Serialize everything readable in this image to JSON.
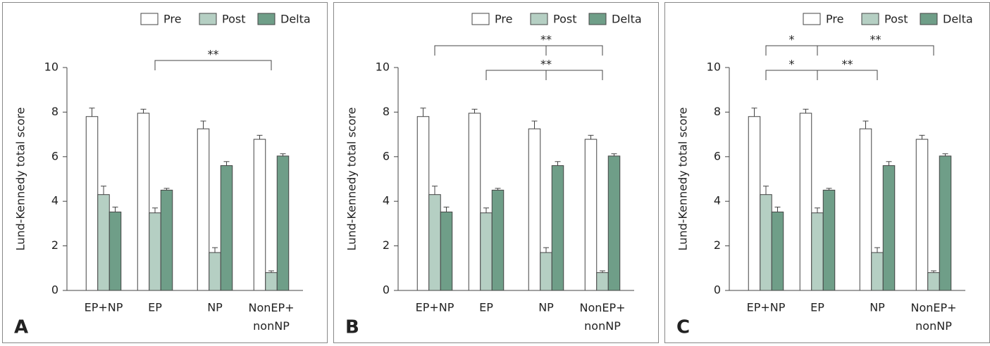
{
  "chart_data": [
    {
      "type": "bar",
      "panel": "A",
      "ylabel": "Lund-Kennedy total score",
      "categories": [
        "EP+NP",
        "EP",
        "NP",
        "NonEP+ nonNP"
      ],
      "series": [
        {
          "name": "Pre",
          "color": "#ffffff",
          "values": [
            7.8,
            7.95,
            7.25,
            6.78
          ],
          "errors": [
            0.38,
            0.18,
            0.35,
            0.18
          ]
        },
        {
          "name": "Post",
          "color": "#b5cfc3",
          "values": [
            4.3,
            3.48,
            1.7,
            0.8
          ],
          "errors": [
            0.38,
            0.22,
            0.22,
            0.08
          ]
        },
        {
          "name": "Delta",
          "color": "#6f9e88",
          "values": [
            3.52,
            4.5,
            5.6,
            6.03
          ],
          "errors": [
            0.22,
            0.08,
            0.18,
            0.1
          ]
        }
      ],
      "ylim": [
        0,
        10
      ],
      "yticks": [
        0,
        2,
        4,
        6,
        8,
        10
      ],
      "annotations": [
        {
          "from": 1,
          "to": 3,
          "labels": [
            "**"
          ]
        }
      ]
    },
    {
      "type": "bar",
      "panel": "B",
      "ylabel": "Lund-Kennedy total score",
      "categories": [
        "EP+NP",
        "EP",
        "NP",
        "NonEP+ nonNP"
      ],
      "series": [
        {
          "name": "Pre",
          "color": "#ffffff",
          "values": [
            7.8,
            7.95,
            7.25,
            6.78
          ],
          "errors": [
            0.38,
            0.18,
            0.35,
            0.18
          ]
        },
        {
          "name": "Post",
          "color": "#b5cfc3",
          "values": [
            4.3,
            3.48,
            1.7,
            0.8
          ],
          "errors": [
            0.38,
            0.22,
            0.22,
            0.08
          ]
        },
        {
          "name": "Delta",
          "color": "#6f9e88",
          "values": [
            3.52,
            4.5,
            5.6,
            6.03
          ],
          "errors": [
            0.22,
            0.08,
            0.18,
            0.1
          ]
        }
      ],
      "ylim": [
        0,
        10
      ],
      "yticks": [
        0,
        2,
        4,
        6,
        8,
        10
      ],
      "annotations": [
        {
          "from": 0,
          "to": 3,
          "pivot": 2,
          "labels": [
            "**"
          ]
        },
        {
          "from": 1,
          "to": 3,
          "pivot": 2,
          "labels": [
            "**"
          ]
        }
      ]
    },
    {
      "type": "bar",
      "panel": "C",
      "ylabel": "Lund-Kennedy total score",
      "categories": [
        "EP+NP",
        "EP",
        "NP",
        "NonEP+ nonNP"
      ],
      "series": [
        {
          "name": "Pre",
          "color": "#ffffff",
          "values": [
            7.8,
            7.95,
            7.25,
            6.78
          ],
          "errors": [
            0.38,
            0.18,
            0.35,
            0.18
          ]
        },
        {
          "name": "Post",
          "color": "#b5cfc3",
          "values": [
            4.3,
            3.48,
            1.7,
            0.8
          ],
          "errors": [
            0.38,
            0.22,
            0.22,
            0.08
          ]
        },
        {
          "name": "Delta",
          "color": "#6f9e88",
          "values": [
            3.52,
            4.5,
            5.6,
            6.03
          ],
          "errors": [
            0.22,
            0.08,
            0.18,
            0.1
          ]
        }
      ],
      "ylim": [
        0,
        10
      ],
      "yticks": [
        0,
        2,
        4,
        6,
        8,
        10
      ],
      "annotations": [
        {
          "from": 0,
          "to": 3,
          "pivot": 1,
          "labels": [
            "*",
            "**"
          ]
        },
        {
          "from": 0,
          "to": 2,
          "pivot": 1,
          "labels": [
            "*",
            "**"
          ]
        }
      ]
    }
  ]
}
